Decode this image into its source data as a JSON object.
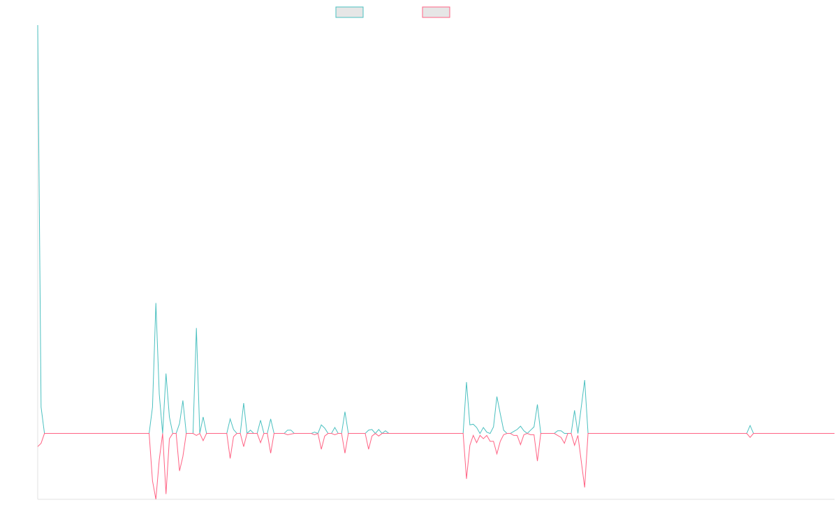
{
  "chart_data": {
    "type": "line",
    "title": "",
    "xlabel": "",
    "ylabel": "",
    "ylim": [
      -100,
      620
    ],
    "x_count": 236,
    "grid": false,
    "legend_placement": "top-center",
    "series": [
      {
        "color": "#4bc0c0",
        "fill": "#e6e6e6",
        "points": [
          [
            0,
            620
          ],
          [
            1,
            40
          ],
          [
            2,
            0
          ],
          [
            3,
            0
          ],
          [
            33,
            0
          ],
          [
            34,
            40
          ],
          [
            35,
            198
          ],
          [
            36,
            60
          ],
          [
            37,
            0
          ],
          [
            38,
            91
          ],
          [
            39,
            25
          ],
          [
            40,
            0
          ],
          [
            41,
            0
          ],
          [
            42,
            15
          ],
          [
            43,
            50
          ],
          [
            44,
            0
          ],
          [
            45,
            0
          ],
          [
            46,
            0
          ],
          [
            47,
            160
          ],
          [
            48,
            0
          ],
          [
            49,
            25
          ],
          [
            50,
            0
          ],
          [
            56,
            0
          ],
          [
            57,
            22
          ],
          [
            58,
            6
          ],
          [
            59,
            0
          ],
          [
            60,
            0
          ],
          [
            61,
            46
          ],
          [
            62,
            0
          ],
          [
            63,
            5
          ],
          [
            64,
            0
          ],
          [
            65,
            0
          ],
          [
            66,
            20
          ],
          [
            67,
            0
          ],
          [
            68,
            0
          ],
          [
            69,
            22
          ],
          [
            70,
            0
          ],
          [
            73,
            0
          ],
          [
            74,
            5
          ],
          [
            75,
            5
          ],
          [
            76,
            0
          ],
          [
            81,
            0
          ],
          [
            82,
            2
          ],
          [
            83,
            0
          ],
          [
            84,
            13
          ],
          [
            85,
            8
          ],
          [
            86,
            0
          ],
          [
            87,
            0
          ],
          [
            88,
            9
          ],
          [
            89,
            0
          ],
          [
            90,
            0
          ],
          [
            91,
            33
          ],
          [
            92,
            0
          ],
          [
            97,
            0
          ],
          [
            98,
            5
          ],
          [
            99,
            6
          ],
          [
            100,
            0
          ],
          [
            101,
            6
          ],
          [
            102,
            0
          ],
          [
            103,
            4
          ],
          [
            104,
            0
          ],
          [
            126,
            0
          ],
          [
            127,
            78
          ],
          [
            128,
            13
          ],
          [
            129,
            14
          ],
          [
            130,
            9
          ],
          [
            131,
            0
          ],
          [
            132,
            9
          ],
          [
            133,
            2
          ],
          [
            134,
            0
          ],
          [
            135,
            10
          ],
          [
            136,
            56
          ],
          [
            137,
            30
          ],
          [
            138,
            5
          ],
          [
            139,
            0
          ],
          [
            140,
            0
          ],
          [
            141,
            3
          ],
          [
            142,
            6
          ],
          [
            143,
            11
          ],
          [
            144,
            4
          ],
          [
            145,
            0
          ],
          [
            146,
            5
          ],
          [
            147,
            10
          ],
          [
            148,
            44
          ],
          [
            149,
            0
          ],
          [
            153,
            0
          ],
          [
            154,
            4
          ],
          [
            155,
            4
          ],
          [
            156,
            0
          ],
          [
            157,
            0
          ],
          [
            158,
            0
          ],
          [
            159,
            35
          ],
          [
            160,
            0
          ],
          [
            162,
            81
          ],
          [
            163,
            0
          ],
          [
            210,
            0
          ],
          [
            211,
            12
          ],
          [
            212,
            0
          ],
          [
            236,
            0
          ]
        ]
      },
      {
        "color": "#ff6384",
        "fill": "#e6e6e6",
        "points": [
          [
            0,
            -20
          ],
          [
            1,
            -15
          ],
          [
            2,
            0
          ],
          [
            3,
            0
          ],
          [
            33,
            0
          ],
          [
            34,
            -72
          ],
          [
            35,
            -100
          ],
          [
            36,
            -40
          ],
          [
            37,
            0
          ],
          [
            38,
            -92
          ],
          [
            39,
            -8
          ],
          [
            40,
            0
          ],
          [
            41,
            0
          ],
          [
            42,
            -57
          ],
          [
            43,
            -35
          ],
          [
            44,
            0
          ],
          [
            45,
            0
          ],
          [
            46,
            0
          ],
          [
            47,
            -3
          ],
          [
            48,
            0
          ],
          [
            49,
            -11
          ],
          [
            50,
            0
          ],
          [
            56,
            0
          ],
          [
            57,
            -38
          ],
          [
            58,
            -5
          ],
          [
            59,
            0
          ],
          [
            60,
            0
          ],
          [
            61,
            -20
          ],
          [
            62,
            0
          ],
          [
            63,
            0
          ],
          [
            64,
            0
          ],
          [
            65,
            0
          ],
          [
            66,
            -14
          ],
          [
            67,
            0
          ],
          [
            68,
            0
          ],
          [
            69,
            -30
          ],
          [
            70,
            0
          ],
          [
            73,
            0
          ],
          [
            74,
            -2
          ],
          [
            75,
            -1
          ],
          [
            76,
            0
          ],
          [
            81,
            0
          ],
          [
            82,
            -2
          ],
          [
            83,
            0
          ],
          [
            84,
            -24
          ],
          [
            85,
            -4
          ],
          [
            86,
            0
          ],
          [
            87,
            0
          ],
          [
            88,
            -2
          ],
          [
            89,
            0
          ],
          [
            90,
            0
          ],
          [
            91,
            -30
          ],
          [
            92,
            0
          ],
          [
            97,
            0
          ],
          [
            98,
            -24
          ],
          [
            99,
            -4
          ],
          [
            100,
            0
          ],
          [
            101,
            -4
          ],
          [
            102,
            0
          ],
          [
            103,
            0
          ],
          [
            104,
            0
          ],
          [
            126,
            0
          ],
          [
            127,
            -69
          ],
          [
            128,
            -18
          ],
          [
            129,
            -3
          ],
          [
            130,
            -14
          ],
          [
            131,
            -3
          ],
          [
            132,
            -8
          ],
          [
            133,
            -3
          ],
          [
            134,
            -12
          ],
          [
            135,
            -12
          ],
          [
            136,
            -31
          ],
          [
            137,
            -12
          ],
          [
            138,
            -2
          ],
          [
            139,
            0
          ],
          [
            140,
            0
          ],
          [
            141,
            -3
          ],
          [
            142,
            -3
          ],
          [
            143,
            -17
          ],
          [
            144,
            -2
          ],
          [
            145,
            0
          ],
          [
            146,
            -2
          ],
          [
            147,
            -2
          ],
          [
            148,
            -42
          ],
          [
            149,
            0
          ],
          [
            153,
            0
          ],
          [
            154,
            -3
          ],
          [
            155,
            -6
          ],
          [
            156,
            -15
          ],
          [
            157,
            0
          ],
          [
            158,
            0
          ],
          [
            159,
            -18
          ],
          [
            160,
            -3
          ],
          [
            162,
            -82
          ],
          [
            163,
            0
          ],
          [
            210,
            0
          ],
          [
            211,
            -6
          ],
          [
            212,
            0
          ],
          [
            236,
            0
          ]
        ]
      }
    ]
  }
}
